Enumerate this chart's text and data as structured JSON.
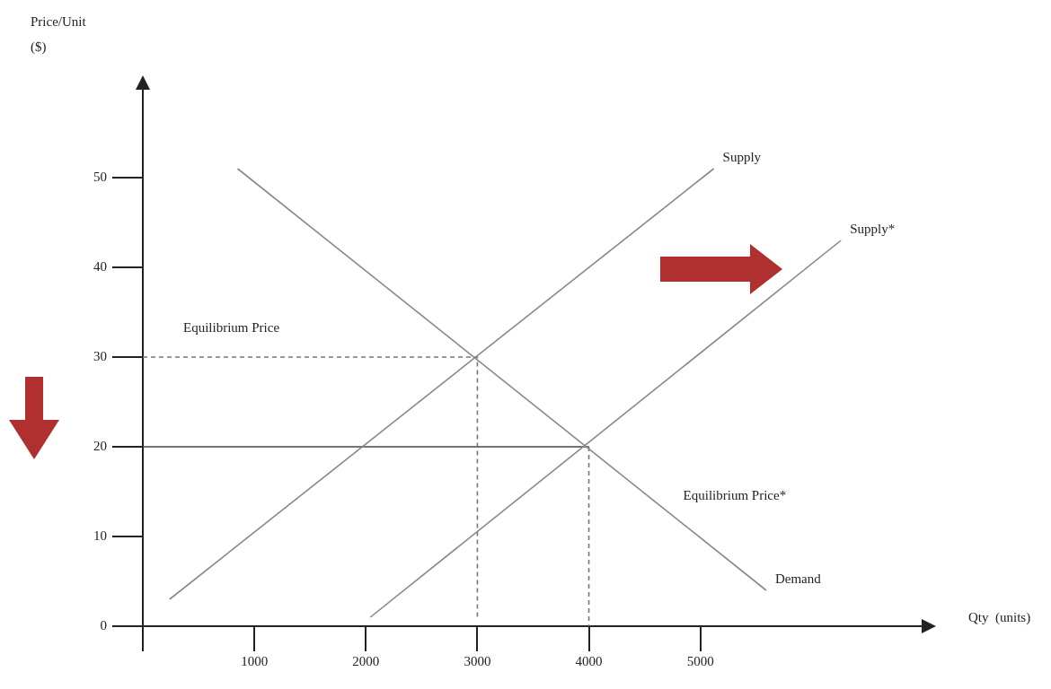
{
  "chart_data": {
    "type": "line",
    "xlabel": "Qty  (units)",
    "ylabel": "Price/Unit ($)",
    "xlim": [
      0,
      7000
    ],
    "ylim": [
      0,
      60
    ],
    "xticks": [
      {
        "value": 0,
        "label": null
      },
      1000,
      2000,
      3000,
      4000,
      5000
    ],
    "yticks": [
      0,
      10,
      20,
      30,
      40,
      50
    ],
    "grid": false,
    "marker": "none",
    "series": [
      {
        "name": "Supply",
        "color": "#888888",
        "x": [
          240,
          5120
        ],
        "values": [
          3,
          51
        ]
      },
      {
        "name": "Supply*",
        "color": "#888888",
        "x": [
          2040,
          6260
        ],
        "values": [
          1,
          43
        ]
      },
      {
        "name": "Demand",
        "color": "#888888",
        "x": [
          850,
          5590
        ],
        "values": [
          51,
          4
        ]
      },
      {
        "color": "#777777",
        "line_style": "dashed",
        "x": [
          0,
          3000,
          3000
        ],
        "values": [
          30,
          30,
          1
        ]
      },
      {
        "color": "#444444",
        "line_style": "solid",
        "x": [
          0,
          4000
        ],
        "values": [
          20,
          20
        ]
      },
      {
        "color": "#777777",
        "line_style": "dashed",
        "x": [
          4000,
          4000
        ],
        "values": [
          20,
          0
        ]
      }
    ],
    "annotations": [
      "Equilibrium Price",
      "Equilibrium Price*"
    ]
  }
}
